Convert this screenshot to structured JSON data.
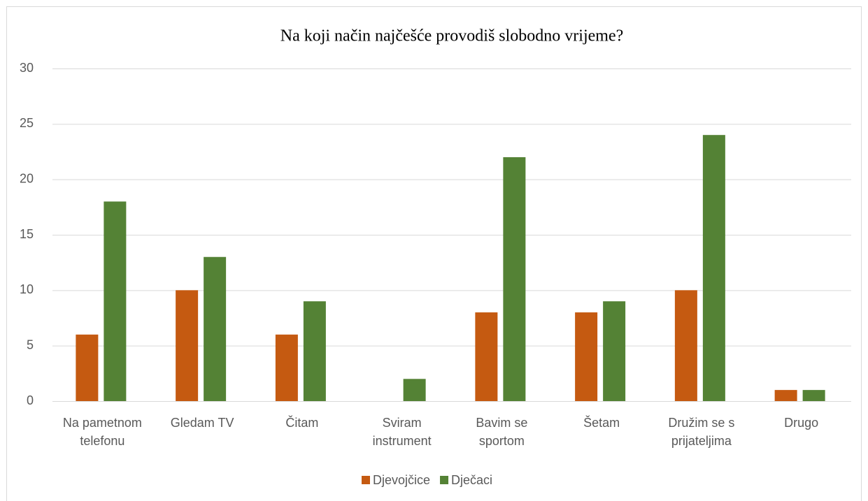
{
  "chart_data": {
    "type": "bar",
    "title": "Na koji način najčešće provodiš slobodno vrijeme?",
    "categories": [
      "Na pametnom telefonu",
      "Gledam TV",
      "Čitam",
      "Sviram instrument",
      "Bavim se sportom",
      "Šetam",
      "Družim se s prijateljima",
      "Drugo"
    ],
    "series": [
      {
        "name": "Djevojčice",
        "color": "#c55a11",
        "values": [
          6,
          10,
          6,
          0,
          8,
          8,
          10,
          1
        ]
      },
      {
        "name": "Dječaci",
        "color": "#548235",
        "values": [
          18,
          13,
          9,
          2,
          22,
          9,
          24,
          1
        ]
      }
    ],
    "ylim": [
      0,
      30
    ],
    "yticks": [
      0,
      5,
      10,
      15,
      20,
      25,
      30
    ],
    "grid": true,
    "legend": "bottom"
  }
}
